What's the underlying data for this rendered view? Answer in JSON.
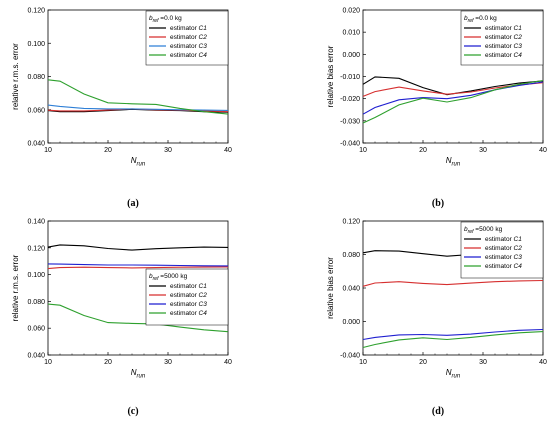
{
  "chart_data": [
    {
      "type": "line",
      "panel_label": "(a)",
      "xlabel": "N",
      "xlabel_sub": "run",
      "ylabel": "relative r.m.s. error",
      "xlim": [
        10,
        40
      ],
      "ylim": [
        0.04,
        0.12
      ],
      "xticks": [
        "10",
        "20",
        "30",
        "40"
      ],
      "yticks": [
        "0.040",
        "0.060",
        "0.080",
        "0.100",
        "0.120"
      ],
      "legend": {
        "position": "top-right",
        "title_main": "b",
        "title_sub": "ref",
        "title_rest": " =0.0 kg"
      },
      "series": [
        {
          "name_main": "estimator ",
          "name_ital": "C1",
          "color": "#000000",
          "x": [
            10,
            12,
            16,
            20,
            24,
            28,
            32,
            36,
            40
          ],
          "y": [
            0.0595,
            0.0588,
            0.0588,
            0.0595,
            0.0603,
            0.0597,
            0.0595,
            0.0588,
            0.0585
          ]
        },
        {
          "name_main": "estimator ",
          "name_ital": "C2",
          "color": "#d62f2f",
          "x": [
            10,
            12,
            16,
            20,
            24,
            28,
            32,
            36,
            40
          ],
          "y": [
            0.0597,
            0.0593,
            0.0593,
            0.0598,
            0.0605,
            0.06,
            0.0597,
            0.0593,
            0.0588
          ]
        },
        {
          "name_main": "estimator ",
          "name_ital": "C3",
          "color": "#2e7fd6",
          "x": [
            10,
            12,
            16,
            20,
            24,
            28,
            32,
            36,
            40
          ],
          "y": [
            0.0628,
            0.062,
            0.0608,
            0.0605,
            0.0605,
            0.0603,
            0.06,
            0.0598,
            0.0596
          ]
        },
        {
          "name_main": "estimator ",
          "name_ital": "C4",
          "color": "#2ea02e",
          "x": [
            10,
            12,
            16,
            20,
            24,
            28,
            32,
            36,
            40
          ],
          "y": [
            0.078,
            0.0772,
            0.0695,
            0.0642,
            0.0636,
            0.0632,
            0.0608,
            0.0588,
            0.0574
          ]
        }
      ]
    },
    {
      "type": "line",
      "panel_label": "(b)",
      "xlabel": "N",
      "xlabel_sub": "run",
      "ylabel": "relative bias error",
      "xlim": [
        10,
        40
      ],
      "ylim": [
        -0.04,
        0.02
      ],
      "xticks": [
        "10",
        "20",
        "30",
        "40"
      ],
      "yticks": [
        "-0.040",
        "-0.030",
        "-0.020",
        "-0.010",
        "0.000",
        "0.010",
        "0.020"
      ],
      "legend": {
        "position": "top-right",
        "title_main": "b",
        "title_sub": "ref",
        "title_rest": " =0.0 kg"
      },
      "series": [
        {
          "name_main": "estimator ",
          "name_ital": "C1",
          "color": "#000000",
          "x": [
            10,
            12,
            16,
            20,
            24,
            28,
            32,
            36,
            40
          ],
          "y": [
            -0.0135,
            -0.0102,
            -0.0108,
            -0.015,
            -0.0182,
            -0.0165,
            -0.0145,
            -0.013,
            -0.012
          ]
        },
        {
          "name_main": "estimator ",
          "name_ital": "C2",
          "color": "#d62f2f",
          "x": [
            10,
            12,
            16,
            20,
            24,
            28,
            32,
            36,
            40
          ],
          "y": [
            -0.019,
            -0.0168,
            -0.0148,
            -0.0165,
            -0.018,
            -0.017,
            -0.0152,
            -0.0138,
            -0.0128
          ]
        },
        {
          "name_main": "estimator ",
          "name_ital": "C3",
          "color": "#1f1fd0",
          "x": [
            10,
            12,
            16,
            20,
            24,
            28,
            32,
            36,
            40
          ],
          "y": [
            -0.027,
            -0.024,
            -0.0205,
            -0.0195,
            -0.02,
            -0.0185,
            -0.016,
            -0.014,
            -0.0125
          ]
        },
        {
          "name_main": "estimator ",
          "name_ital": "C4",
          "color": "#2ea02e",
          "x": [
            10,
            12,
            16,
            20,
            24,
            28,
            32,
            36,
            40
          ],
          "y": [
            -0.031,
            -0.0285,
            -0.0228,
            -0.0198,
            -0.0215,
            -0.0195,
            -0.016,
            -0.0135,
            -0.0118
          ]
        }
      ]
    },
    {
      "type": "line",
      "panel_label": "(c)",
      "xlabel": "N",
      "xlabel_sub": "run",
      "ylabel": "relative r.m.s. error",
      "xlim": [
        10,
        40
      ],
      "ylim": [
        0.04,
        0.14
      ],
      "xticks": [
        "10",
        "20",
        "30",
        "40"
      ],
      "yticks": [
        "0.040",
        "0.060",
        "0.080",
        "0.100",
        "0.120",
        "0.140"
      ],
      "legend": {
        "position": "right",
        "title_main": "b",
        "title_sub": "ref",
        "title_rest": " =5000 kg"
      },
      "series": [
        {
          "name_main": "estimator ",
          "name_ital": "C1",
          "color": "#000000",
          "x": [
            10,
            12,
            16,
            20,
            24,
            28,
            32,
            36,
            40
          ],
          "y": [
            0.1205,
            0.1222,
            0.1215,
            0.1195,
            0.1183,
            0.1193,
            0.12,
            0.1205,
            0.1203
          ]
        },
        {
          "name_main": "estimator ",
          "name_ital": "C2",
          "color": "#d62f2f",
          "x": [
            10,
            12,
            16,
            20,
            24,
            28,
            32,
            36,
            40
          ],
          "y": [
            0.1045,
            0.1052,
            0.1055,
            0.1052,
            0.105,
            0.1052,
            0.1055,
            0.1056,
            0.1057
          ]
        },
        {
          "name_main": "estimator ",
          "name_ital": "C3",
          "color": "#1f1fd0",
          "x": [
            10,
            12,
            16,
            20,
            24,
            28,
            32,
            36,
            40
          ],
          "y": [
            0.108,
            0.1078,
            0.1075,
            0.1072,
            0.1072,
            0.107,
            0.1068,
            0.1066,
            0.1065
          ]
        },
        {
          "name_main": "estimator ",
          "name_ital": "C4",
          "color": "#2ea02e",
          "x": [
            10,
            12,
            16,
            20,
            24,
            28,
            32,
            36,
            40
          ],
          "y": [
            0.078,
            0.0772,
            0.0695,
            0.0642,
            0.0636,
            0.0632,
            0.0608,
            0.0588,
            0.0574
          ]
        }
      ]
    },
    {
      "type": "line",
      "panel_label": "(d)",
      "xlabel": "N",
      "xlabel_sub": "run",
      "ylabel": "relative bias error",
      "xlim": [
        10,
        40
      ],
      "ylim": [
        -0.04,
        0.12
      ],
      "xticks": [
        "10",
        "20",
        "30",
        "40"
      ],
      "yticks": [
        "-0.040",
        "0.000",
        "0.040",
        "0.080",
        "0.120"
      ],
      "legend": {
        "position": "top-right",
        "title_main": "b",
        "title_sub": "ref",
        "title_rest": " =5000 kg"
      },
      "series": [
        {
          "name_main": "estimator ",
          "name_ital": "C1",
          "color": "#000000",
          "x": [
            10,
            12,
            16,
            20,
            24,
            28,
            32,
            36,
            40
          ],
          "y": [
            0.082,
            0.0845,
            0.084,
            0.081,
            0.078,
            0.08,
            0.0815,
            0.0825,
            0.083
          ]
        },
        {
          "name_main": "estimator ",
          "name_ital": "C2",
          "color": "#d62f2f",
          "x": [
            10,
            12,
            16,
            20,
            24,
            28,
            32,
            36,
            40
          ],
          "y": [
            0.042,
            0.046,
            0.0475,
            0.0455,
            0.044,
            0.0458,
            0.0475,
            0.0485,
            0.049
          ]
        },
        {
          "name_main": "estimator ",
          "name_ital": "C3",
          "color": "#1f1fd0",
          "x": [
            10,
            12,
            16,
            20,
            24,
            28,
            32,
            36,
            40
          ],
          "y": [
            -0.0215,
            -0.019,
            -0.016,
            -0.0155,
            -0.0165,
            -0.015,
            -0.0125,
            -0.0105,
            -0.0095
          ]
        },
        {
          "name_main": "estimator ",
          "name_ital": "C4",
          "color": "#2ea02e",
          "x": [
            10,
            12,
            16,
            20,
            24,
            28,
            32,
            36,
            40
          ],
          "y": [
            -0.031,
            -0.0275,
            -0.022,
            -0.0195,
            -0.0215,
            -0.019,
            -0.016,
            -0.0135,
            -0.012
          ]
        }
      ]
    }
  ]
}
